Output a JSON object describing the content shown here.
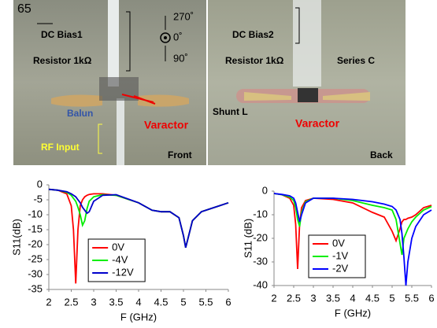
{
  "photo": {
    "front": {
      "number": "65",
      "dc_bias": "DC Bias1",
      "resistor": "Resistor 1kΩ",
      "balun": "Balun",
      "varactor": "Varactor",
      "rf_input": "RF Input",
      "side": "Front",
      "angle_top": "270˚",
      "angle_mid": "0˚",
      "angle_bottom": "90˚"
    },
    "back": {
      "dc_bias": "DC Bias2",
      "resistor": "Resistor 1kΩ",
      "series": "Series C",
      "shunt": "Shunt L",
      "varactor": "Varactor",
      "side": "Back"
    }
  },
  "chart_data": [
    {
      "type": "line",
      "xlabel": "F (GHz)",
      "ylabel": "S11(dB)",
      "x": [
        2,
        2.2,
        2.4,
        2.5,
        2.55,
        2.6,
        2.65,
        2.7,
        2.75,
        2.8,
        2.85,
        2.9,
        3,
        3.2,
        3.5,
        4,
        4.3,
        4.5,
        4.7,
        4.9,
        5,
        5.05,
        5.1,
        5.2,
        5.4,
        5.6,
        5.8,
        6
      ],
      "series": [
        {
          "name": "0V",
          "color": "#ff0000",
          "values": [
            -1.5,
            -1.8,
            -3,
            -7,
            -15,
            -33,
            -15,
            -7,
            -5,
            -4,
            -3.5,
            -3.2,
            -3,
            -3,
            -3.5,
            -6,
            -8.5,
            -9,
            -9,
            -11,
            -17,
            -21,
            -18,
            -12,
            -9,
            -8,
            -7,
            -6
          ]
        },
        {
          "name": "-4V",
          "color": "#00ee00",
          "values": [
            -1.5,
            -1.8,
            -2.5,
            -3.5,
            -4.5,
            -5.5,
            -7.5,
            -10,
            -13.5,
            -12,
            -8,
            -5.5,
            -4,
            -3.3,
            -3.5,
            -6,
            -8.5,
            -9,
            -9,
            -11,
            -17,
            -21,
            -18,
            -12,
            -9,
            -8,
            -7,
            -6
          ]
        },
        {
          "name": "-12V",
          "color": "#0000cc",
          "values": [
            -1.5,
            -1.8,
            -2.3,
            -3,
            -3.5,
            -4,
            -5,
            -6,
            -7.5,
            -8.5,
            -9.5,
            -9,
            -5.5,
            -3.5,
            -3.3,
            -6,
            -8.5,
            -9,
            -9,
            -11,
            -17,
            -21,
            -18,
            -12,
            -9,
            -8,
            -7,
            -6
          ]
        }
      ],
      "xlim": [
        2,
        6
      ],
      "xticks": [
        2,
        2.5,
        3,
        3.5,
        4,
        4.5,
        5,
        5.5,
        6
      ],
      "ylim": [
        -35,
        0
      ],
      "yticks": [
        0,
        -5,
        -10,
        -15,
        -20,
        -25,
        -30,
        -35
      ],
      "grid": false,
      "legend": "lower left"
    },
    {
      "type": "line",
      "xlabel": "F (GHz)",
      "ylabel": "S11 (dB)",
      "x": [
        2,
        2.2,
        2.4,
        2.5,
        2.55,
        2.6,
        2.65,
        2.7,
        2.8,
        3,
        3.5,
        4,
        4.5,
        4.8,
        5,
        5.1,
        5.2,
        5.25,
        5.3,
        5.35,
        5.4,
        5.5,
        5.6,
        5.8,
        6
      ],
      "series": [
        {
          "name": "0V",
          "color": "#ff0000",
          "values": [
            -1,
            -1.5,
            -3,
            -6,
            -14,
            -33,
            -14,
            -7,
            -4,
            -3,
            -3.5,
            -5,
            -9,
            -11,
            -17,
            -21,
            -16,
            -13,
            -12,
            -12,
            -11.5,
            -11,
            -10,
            -7,
            -6
          ]
        },
        {
          "name": "-1V",
          "color": "#00ee00",
          "values": [
            -1,
            -1.5,
            -2.5,
            -4,
            -7,
            -12,
            -15,
            -9,
            -4.5,
            -3,
            -3,
            -4,
            -6,
            -7,
            -8,
            -12,
            -22,
            -27,
            -20,
            -18,
            -16,
            -13,
            -11,
            -8,
            -6.5
          ]
        },
        {
          "name": "-2V",
          "color": "#0000ff",
          "values": [
            -1,
            -1.4,
            -2,
            -3,
            -5,
            -9,
            -13,
            -10,
            -5,
            -3,
            -3,
            -3.5,
            -4.5,
            -5.5,
            -6.5,
            -8,
            -12,
            -18,
            -28,
            -40,
            -30,
            -20,
            -15,
            -10,
            -8
          ]
        }
      ],
      "xlim": [
        2,
        6
      ],
      "xticks": [
        2,
        2.5,
        3,
        3.5,
        4,
        4.5,
        5,
        5.5,
        6
      ],
      "ylim": [
        -40,
        0
      ],
      "yticks": [
        0,
        -10,
        -20,
        -30,
        -40
      ],
      "grid": false,
      "legend": "lower left"
    }
  ]
}
